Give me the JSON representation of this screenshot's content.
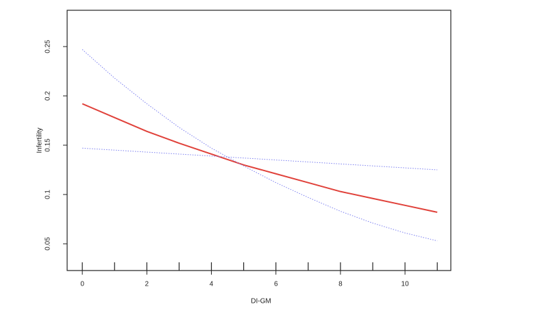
{
  "chart_data": {
    "type": "line",
    "xlabel": "DI-GM",
    "ylabel": "Infertility",
    "x": [
      0,
      1,
      2,
      3,
      4,
      5,
      6,
      7,
      8,
      9,
      10,
      11
    ],
    "series": [
      {
        "color": "#e0413a",
        "style": "solid",
        "values": [
          0.192,
          0.178,
          0.164,
          0.152,
          0.141,
          0.13,
          0.121,
          0.112,
          0.103,
          0.096,
          0.089,
          0.082
        ]
      },
      {
        "color": "#7b7ff0",
        "style": "dotted",
        "values": [
          0.247,
          0.218,
          0.192,
          0.168,
          0.147,
          0.129,
          0.112,
          0.097,
          0.083,
          0.071,
          0.061,
          0.053
        ]
      },
      {
        "color": "#7b7ff0",
        "style": "dotted",
        "values": [
          0.147,
          0.145,
          0.143,
          0.141,
          0.139,
          0.137,
          0.135,
          0.133,
          0.131,
          0.129,
          0.127,
          0.125
        ]
      }
    ],
    "rug": [
      0,
      1,
      2,
      3,
      4,
      5,
      6,
      7,
      8,
      9,
      10,
      11
    ],
    "xlim": [
      -0.47,
      11.42
    ],
    "ylim": [
      0.0229,
      0.2868
    ],
    "xticks": [
      0,
      2,
      4,
      6,
      8,
      10
    ],
    "yticks": [
      0.05,
      0.1,
      0.15,
      0.2,
      0.25
    ]
  }
}
